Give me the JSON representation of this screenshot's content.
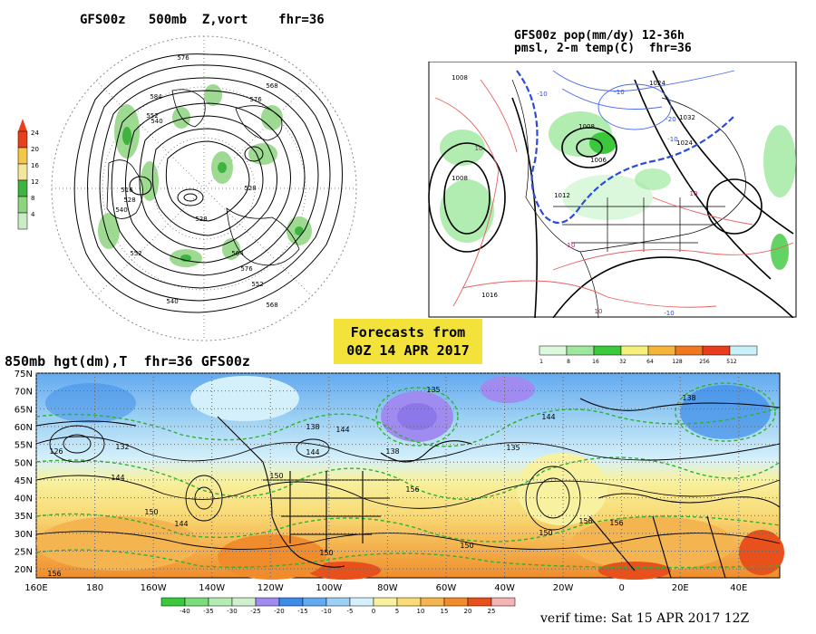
{
  "panels": {
    "polar": {
      "title": "GFS00z   500mb  Z,vort    fhr=36",
      "legend": {
        "ticks": [
          "24",
          "20",
          "16",
          "12",
          "8",
          "4"
        ],
        "colors": [
          "#e8401c",
          "#f3c84a",
          "#f5e79a",
          "#3fb33f",
          "#8ed47f",
          "#c9ecc4"
        ]
      },
      "contour_labels": [
        "576",
        "568",
        "584",
        "552",
        "540",
        "576",
        "528",
        "516",
        "528",
        "540",
        "552",
        "564",
        "576",
        "552",
        "568",
        "540",
        "528"
      ]
    },
    "precip": {
      "title_line1": "GFS00z pop(mm/dy) 12-36h",
      "title_line2": "pmsl, 2-m temp(C)  fhr=36",
      "legend": {
        "ticks": [
          "1",
          "8",
          "16",
          "32",
          "64",
          "128",
          "256",
          "512"
        ],
        "colors": [
          "#dcf8dc",
          "#9ee89e",
          "#3cc83c",
          "#f5f07a",
          "#f5b43c",
          "#f07820",
          "#e83c1c",
          "#c8f0f8"
        ]
      },
      "isobar_labels": [
        "1008",
        "1024",
        "1032",
        "1008",
        "1008",
        "1006",
        "1024",
        "1012",
        "1016"
      ],
      "isotherm_labels": [
        "-10",
        "-10",
        "-20",
        "-10",
        "10",
        "10",
        "10",
        "10",
        "-10"
      ]
    },
    "bottom": {
      "title": "850mb hgt(dm),T  fhr=36 GFS00z",
      "lat_labels": [
        "75N",
        "70N",
        "65N",
        "60N",
        "55N",
        "50N",
        "45N",
        "40N",
        "35N",
        "30N",
        "25N",
        "20N"
      ],
      "lon_labels": [
        "160E",
        "180",
        "160W",
        "140W",
        "120W",
        "100W",
        "80W",
        "60W",
        "40W",
        "20W",
        "0",
        "20E",
        "40E"
      ],
      "height_labels": [
        "126",
        "132",
        "144",
        "138",
        "144",
        "135",
        "138",
        "144",
        "144",
        "135",
        "138",
        "150",
        "156",
        "150",
        "144",
        "156",
        "150",
        "150",
        "156",
        "150",
        "156"
      ],
      "legend": {
        "ticks": [
          "-40",
          "-35",
          "-30",
          "-25",
          "-20",
          "-15",
          "-10",
          "-5",
          "0",
          "5",
          "10",
          "15",
          "20",
          "25"
        ],
        "colors": [
          "#3cc83c",
          "#7cdc7c",
          "#b4ecb4",
          "#d0f0d0",
          "#a08cf0",
          "#3c8ce8",
          "#64aaf0",
          "#9cd0f4",
          "#d4f0fa",
          "#f8f2a0",
          "#f8dc78",
          "#f4b450",
          "#f08c2c",
          "#e8501c",
          "#f4b4b4"
        ]
      }
    }
  },
  "forecast_box": {
    "line1": "Forecasts from",
    "line2": "00Z 14 APR 2017"
  },
  "verif_time": "verif time: Sat 15 APR 2017 12Z"
}
